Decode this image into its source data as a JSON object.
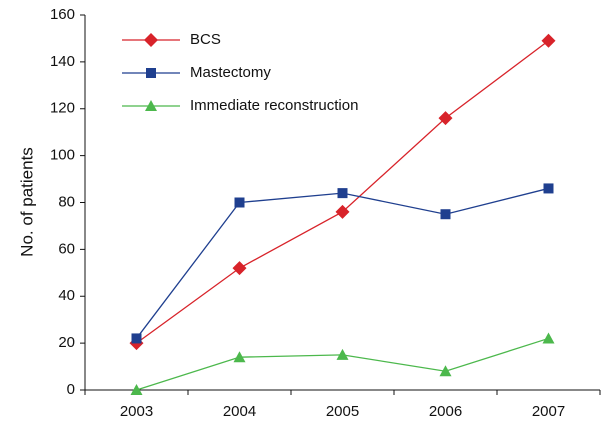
{
  "chart_data": {
    "type": "line",
    "y_label": "No. of patients",
    "categories": [
      "2003",
      "2004",
      "2005",
      "2006",
      "2007"
    ],
    "series": [
      {
        "name": "BCS",
        "color": "#d8232a",
        "marker": "diamond",
        "values": [
          20,
          52,
          76,
          116,
          149
        ]
      },
      {
        "name": "Mastectomy",
        "color": "#1f3f8f",
        "marker": "square",
        "values": [
          22,
          80,
          84,
          75,
          86
        ]
      },
      {
        "name": "Immediate reconstruction",
        "color": "#4cb84c",
        "marker": "triangle",
        "values": [
          0,
          14,
          15,
          8,
          22
        ]
      }
    ],
    "ylim": [
      0,
      160
    ],
    "yticks": [
      0,
      20,
      40,
      60,
      80,
      100,
      120,
      140,
      160
    ],
    "grid": false,
    "legend": "upper left"
  }
}
